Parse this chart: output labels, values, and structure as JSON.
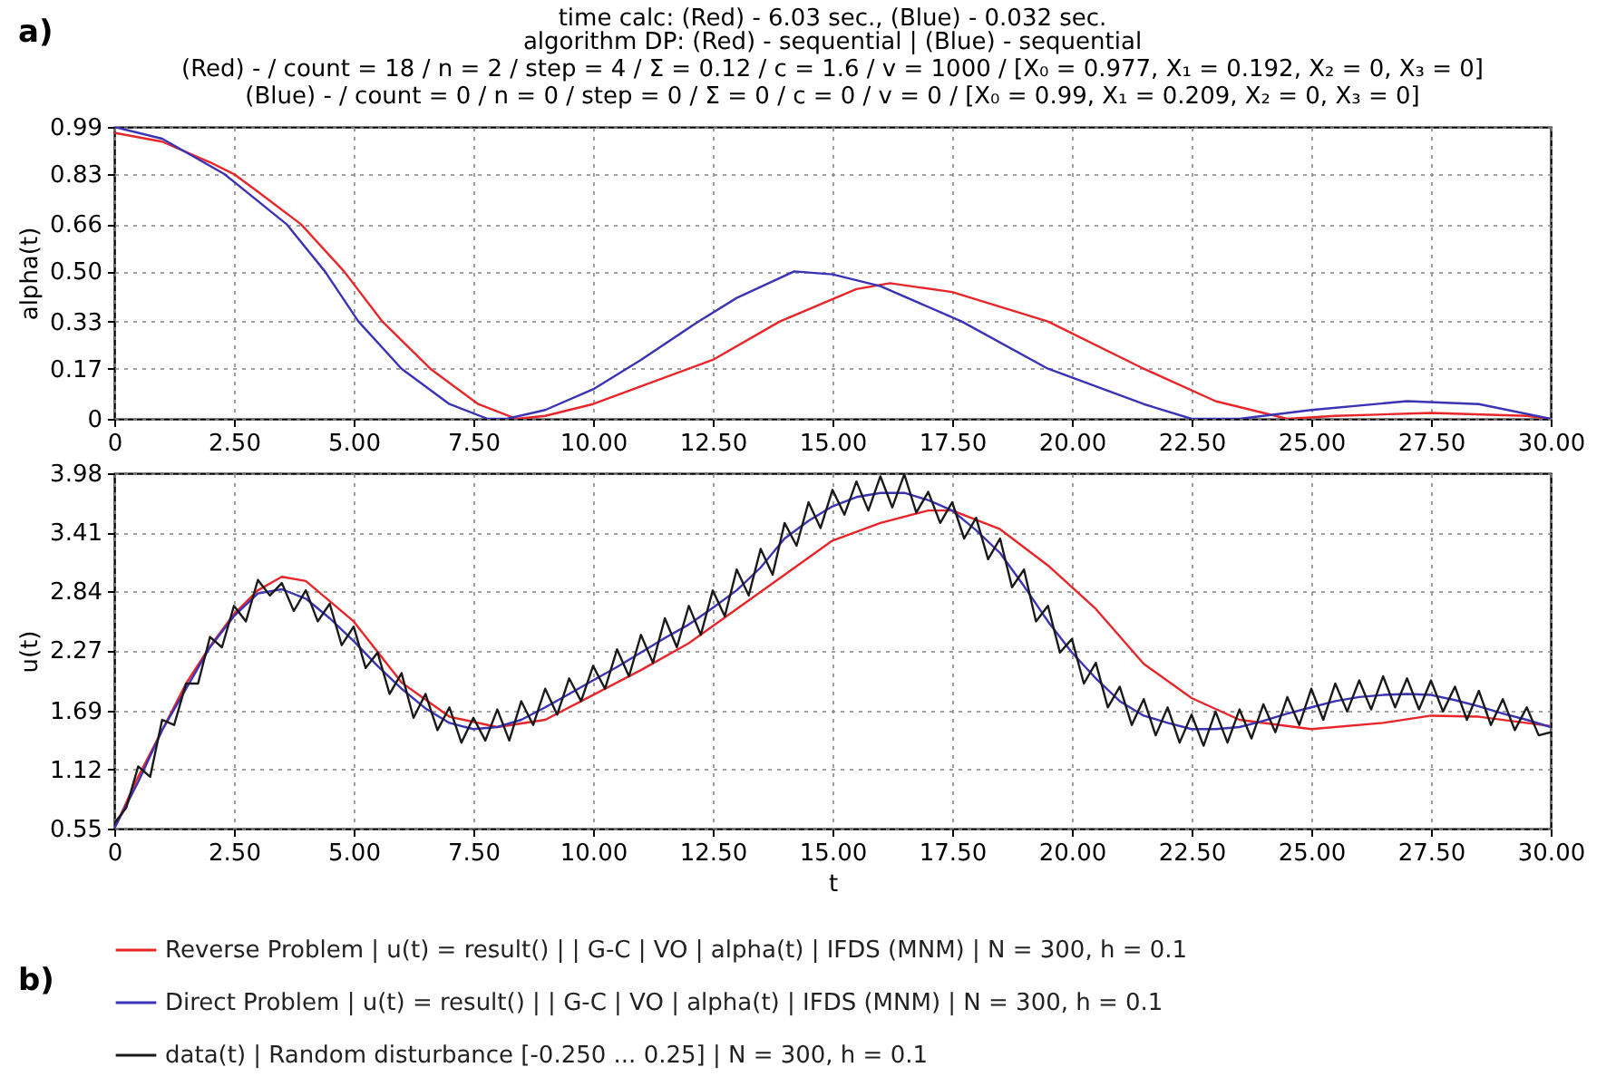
{
  "chart_data": [
    {
      "type": "line",
      "title": "time calc:  (Red) - 6.03 sec., (Blue) - 0.032 sec.",
      "subtitle": "algorithm DP:  (Red) - sequential | (Blue) - sequential\n(Red) - / count = 18 / n = 2 / step = 4 / Σ = 0.12 / c = 1.6 / v = 1000 / [X₀ = 0.977, X₁ = 0.192, X₂ = 0, X₃ = 0]\n(Blue) - / count = 0 / n = 0 / step = 0 / Σ = 0 / c = 0 / v = 0 / [X₀ = 0.99, X₁ = 0.209, X₂ = 0, X₃ = 0]",
      "ylabel": "alpha(t)",
      "annotations": [
        "a)"
      ],
      "grid": true,
      "xlim": [
        0,
        30
      ],
      "xticks": [
        0,
        {
          "value": 2.5,
          "label": "2.50"
        },
        {
          "value": 5,
          "label": "5.00"
        },
        {
          "value": 7.5,
          "label": "7.50"
        },
        {
          "value": 10,
          "label": "10.00"
        },
        {
          "value": 12.5,
          "label": "12.50"
        },
        {
          "value": 15,
          "label": "15.00"
        },
        {
          "value": 17.5,
          "label": "17.50"
        },
        {
          "value": 20,
          "label": "20.00"
        },
        {
          "value": 22.5,
          "label": "22.50"
        },
        {
          "value": 25,
          "label": "25.00"
        },
        {
          "value": 27.5,
          "label": "27.50"
        },
        {
          "value": 30,
          "label": "30.00"
        }
      ],
      "ylim": [
        0,
        0.99
      ],
      "yticks": [
        0,
        0.17,
        0.33,
        {
          "value": 0.5,
          "label": "0.50"
        },
        0.66,
        0.83,
        0.99
      ],
      "series": [
        {
          "color": "#e8262a",
          "x": [
            0,
            1,
            2,
            2.5,
            3,
            3.9,
            4.8,
            5.6,
            6.6,
            7.6,
            8.4,
            9,
            10,
            11,
            12.5,
            13.9,
            15.5,
            16.2,
            17.5,
            19.5,
            21.5,
            23,
            24.5,
            25.5,
            27.5,
            29.5,
            30
          ],
          "values": [
            0.97,
            0.94,
            0.87,
            0.83,
            0.77,
            0.66,
            0.5,
            0.33,
            0.17,
            0.05,
            0,
            0.01,
            0.05,
            0.11,
            0.2,
            0.33,
            0.44,
            0.46,
            0.43,
            0.33,
            0.17,
            0.06,
            0,
            0.01,
            0.02,
            0.01,
            0
          ]
        },
        {
          "color": "#3a33b5",
          "x": [
            0,
            1,
            2.3,
            3.6,
            4.4,
            5.1,
            6,
            7,
            7.8,
            8.2,
            9,
            10,
            11,
            12.2,
            13,
            14.2,
            15,
            16,
            17.7,
            19.5,
            21.5,
            22.5,
            23.5,
            25,
            27,
            28.5,
            30
          ],
          "values": [
            0.99,
            0.95,
            0.83,
            0.66,
            0.5,
            0.33,
            0.17,
            0.05,
            0,
            0,
            0.03,
            0.1,
            0.2,
            0.33,
            0.41,
            0.5,
            0.49,
            0.45,
            0.33,
            0.17,
            0.05,
            0,
            0,
            0.03,
            0.06,
            0.05,
            0
          ]
        }
      ]
    },
    {
      "type": "line",
      "xlabel": "t",
      "ylabel": "u(t)",
      "annotations": [
        "b)"
      ],
      "grid": true,
      "legend": "bottom",
      "xlim": [
        0,
        30
      ],
      "xticks": [
        0,
        {
          "value": 2.5,
          "label": "2.50"
        },
        {
          "value": 5,
          "label": "5.00"
        },
        {
          "value": 7.5,
          "label": "7.50"
        },
        {
          "value": 10,
          "label": "10.00"
        },
        {
          "value": 12.5,
          "label": "12.50"
        },
        {
          "value": 15,
          "label": "15.00"
        },
        {
          "value": 17.5,
          "label": "17.50"
        },
        {
          "value": 20,
          "label": "20.00"
        },
        {
          "value": 22.5,
          "label": "22.50"
        },
        {
          "value": 25,
          "label": "25.00"
        },
        {
          "value": 27.5,
          "label": "27.50"
        },
        {
          "value": 30,
          "label": "30.00"
        }
      ],
      "ylim": [
        0.55,
        3.98
      ],
      "yticks": [
        0.55,
        1.12,
        1.69,
        2.27,
        2.84,
        3.41,
        3.98
      ],
      "series": [
        {
          "name": "Reverse Problem | u(t) = result() | | G-C | VO | alpha(t) | IFDS (MNM) | N = 300, h = 0.1",
          "color": "#e8262a",
          "x": [
            0,
            0.5,
            1,
            1.5,
            2,
            2.5,
            3,
            3.5,
            4,
            5,
            6,
            7,
            8,
            9,
            10,
            11,
            12,
            13,
            14,
            15,
            16,
            17,
            17.5,
            18.5,
            19.5,
            20.5,
            21.5,
            22.5,
            23.5,
            25,
            26.5,
            27.5,
            28.5,
            30
          ],
          "values": [
            0.55,
            1.05,
            1.5,
            1.95,
            2.31,
            2.62,
            2.85,
            2.98,
            2.94,
            2.55,
            1.96,
            1.63,
            1.53,
            1.6,
            1.84,
            2.08,
            2.34,
            2.67,
            3.0,
            3.33,
            3.5,
            3.62,
            3.62,
            3.44,
            3.09,
            2.67,
            2.14,
            1.81,
            1.6,
            1.51,
            1.57,
            1.64,
            1.63,
            1.54
          ]
        },
        {
          "name": "Direct Problem | u(t) = result() | | G-C | VO | alpha(t) | IFDS (MNM) | N = 300, h = 0.1",
          "color": "#3a33b5",
          "x": [
            0,
            0.5,
            1,
            1.5,
            2,
            2.5,
            3,
            3.5,
            4,
            4.5,
            5,
            5.5,
            6,
            6.5,
            7,
            7.5,
            8,
            8.5,
            9,
            9.5,
            10,
            10.5,
            11,
            11.5,
            12,
            12.5,
            13,
            13.5,
            14,
            14.5,
            15,
            15.5,
            16,
            16.5,
            17,
            17.5,
            18,
            18.5,
            19,
            19.5,
            20,
            20.5,
            21,
            21.5,
            22,
            22.5,
            23,
            23.5,
            24,
            24.5,
            25,
            25.5,
            26,
            26.5,
            27,
            27.5,
            28,
            28.5,
            29,
            29.5,
            30
          ],
          "values": [
            0.55,
            1.0,
            1.5,
            1.9,
            2.3,
            2.6,
            2.82,
            2.86,
            2.77,
            2.58,
            2.36,
            2.12,
            1.9,
            1.71,
            1.57,
            1.51,
            1.53,
            1.6,
            1.72,
            1.85,
            1.98,
            2.11,
            2.25,
            2.39,
            2.52,
            2.68,
            2.85,
            3.07,
            3.35,
            3.52,
            3.66,
            3.75,
            3.79,
            3.79,
            3.72,
            3.62,
            3.43,
            3.21,
            2.89,
            2.55,
            2.25,
            2.0,
            1.78,
            1.64,
            1.57,
            1.51,
            1.51,
            1.53,
            1.59,
            1.66,
            1.72,
            1.78,
            1.82,
            1.84,
            1.85,
            1.84,
            1.79,
            1.73,
            1.66,
            1.6,
            1.53
          ]
        },
        {
          "name": "data(t) | Random disturbance [-0.250 ... 0.25] | N = 300, h = 0.1",
          "color": "#1a1a1a",
          "x": [
            0,
            0.25,
            0.5,
            0.75,
            1,
            1.25,
            1.5,
            1.75,
            2,
            2.25,
            2.5,
            2.75,
            3,
            3.25,
            3.5,
            3.75,
            4,
            4.25,
            4.5,
            4.75,
            5,
            5.25,
            5.5,
            5.75,
            6,
            6.25,
            6.5,
            6.75,
            7,
            7.25,
            7.5,
            7.75,
            8,
            8.25,
            8.5,
            8.75,
            9,
            9.25,
            9.5,
            9.75,
            10,
            10.25,
            10.5,
            10.75,
            11,
            11.25,
            11.5,
            11.75,
            12,
            12.25,
            12.5,
            12.75,
            13,
            13.25,
            13.5,
            13.75,
            14,
            14.25,
            14.5,
            14.75,
            15,
            15.25,
            15.5,
            15.75,
            16,
            16.25,
            16.5,
            16.75,
            17,
            17.25,
            17.5,
            17.75,
            18,
            18.25,
            18.5,
            18.75,
            19,
            19.25,
            19.5,
            19.75,
            20,
            20.25,
            20.5,
            20.75,
            21,
            21.25,
            21.5,
            21.75,
            22,
            22.25,
            22.5,
            22.75,
            23,
            23.25,
            23.5,
            23.75,
            24,
            24.25,
            24.5,
            24.75,
            25,
            25.25,
            25.5,
            25.75,
            26,
            26.25,
            26.5,
            26.75,
            27,
            27.25,
            27.5,
            27.75,
            28,
            28.25,
            28.5,
            28.75,
            29,
            29.25,
            29.5,
            29.75,
            30
          ],
          "values": [
            0.6,
            0.75,
            1.15,
            1.05,
            1.6,
            1.55,
            1.95,
            1.95,
            2.4,
            2.3,
            2.7,
            2.55,
            2.95,
            2.8,
            2.92,
            2.65,
            2.85,
            2.55,
            2.72,
            2.32,
            2.5,
            2.1,
            2.25,
            1.85,
            2.05,
            1.62,
            1.85,
            1.5,
            1.72,
            1.38,
            1.62,
            1.4,
            1.7,
            1.4,
            1.78,
            1.55,
            1.9,
            1.65,
            2.0,
            1.78,
            2.12,
            1.9,
            2.28,
            2.02,
            2.42,
            2.15,
            2.58,
            2.3,
            2.7,
            2.42,
            2.85,
            2.6,
            3.05,
            2.8,
            3.25,
            3.0,
            3.5,
            3.28,
            3.7,
            3.45,
            3.82,
            3.58,
            3.9,
            3.62,
            3.95,
            3.65,
            3.97,
            3.6,
            3.8,
            3.5,
            3.7,
            3.35,
            3.55,
            3.15,
            3.35,
            2.88,
            3.05,
            2.55,
            2.7,
            2.25,
            2.38,
            1.95,
            2.15,
            1.72,
            1.92,
            1.55,
            1.8,
            1.45,
            1.72,
            1.38,
            1.65,
            1.35,
            1.68,
            1.38,
            1.7,
            1.42,
            1.75,
            1.48,
            1.82,
            1.55,
            1.9,
            1.6,
            1.95,
            1.68,
            1.98,
            1.7,
            2.02,
            1.72,
            2.0,
            1.7,
            1.98,
            1.68,
            1.92,
            1.6,
            1.88,
            1.55,
            1.8,
            1.5,
            1.72,
            1.45,
            1.48
          ]
        }
      ]
    }
  ]
}
